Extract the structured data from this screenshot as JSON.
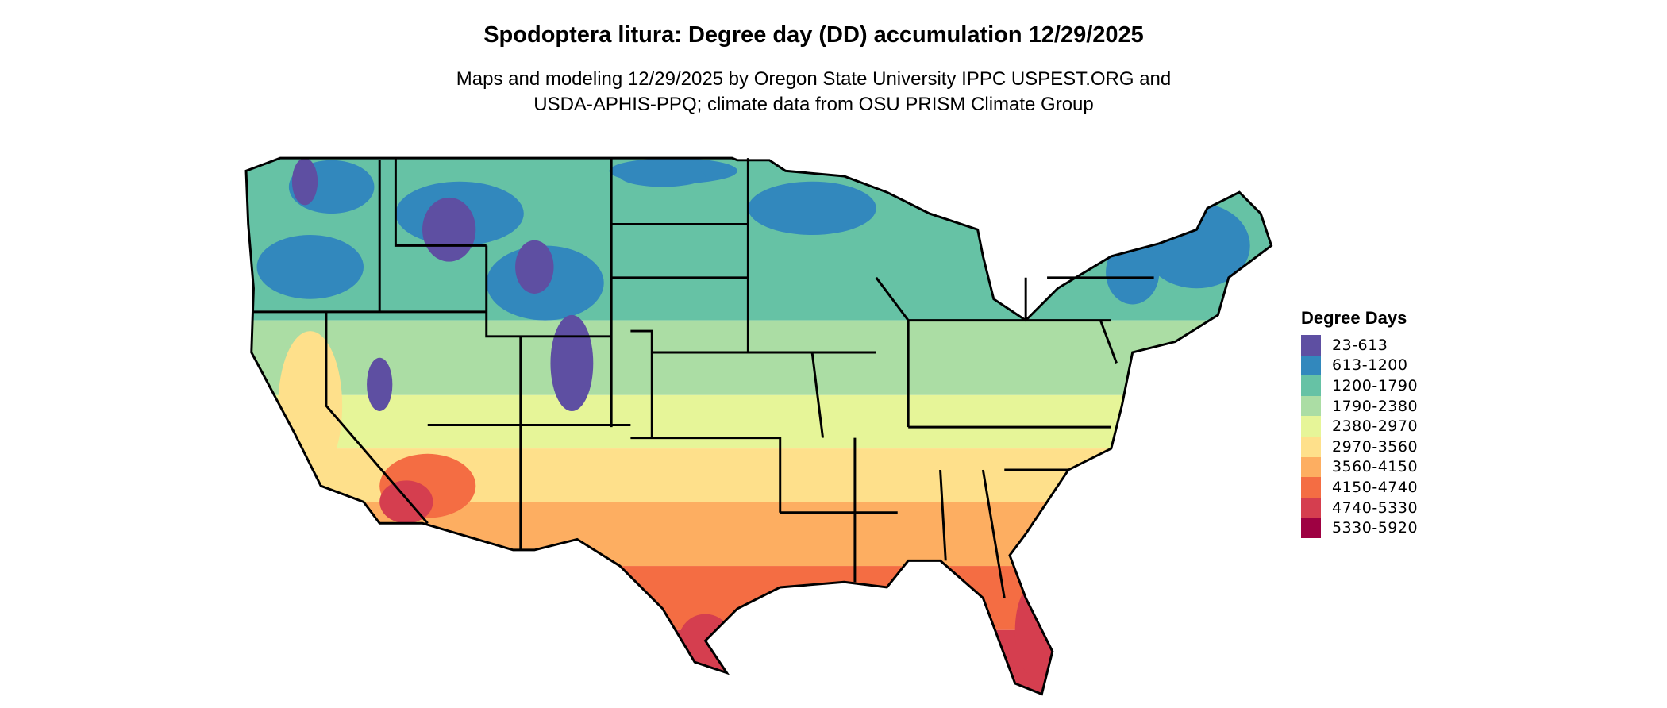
{
  "title": "Spodoptera litura: Degree day (DD) accumulation 12/29/2025",
  "subtitle_lines": [
    "Maps and modeling 12/29/2025 by Oregon State University IPPC USPEST.ORG and",
    "USDA-APHIS-PPQ; climate data from OSU PRISM Climate Group"
  ],
  "legend": {
    "title": "Degree Days",
    "items": [
      {
        "label": "23-613",
        "color": "#5E4FA2"
      },
      {
        "label": "613-1200",
        "color": "#3288BD"
      },
      {
        "label": "1200-1790",
        "color": "#66C2A5"
      },
      {
        "label": "1790-2380",
        "color": "#ABDDA4"
      },
      {
        "label": "2380-2970",
        "color": "#E6F598"
      },
      {
        "label": "2970-3560",
        "color": "#FEE08B"
      },
      {
        "label": "3560-4150",
        "color": "#FDAE61"
      },
      {
        "label": "4150-4740",
        "color": "#F46D43"
      },
      {
        "label": "4740-5330",
        "color": "#D53E4F"
      },
      {
        "label": "5330-5920",
        "color": "#9E0142"
      }
    ]
  }
}
